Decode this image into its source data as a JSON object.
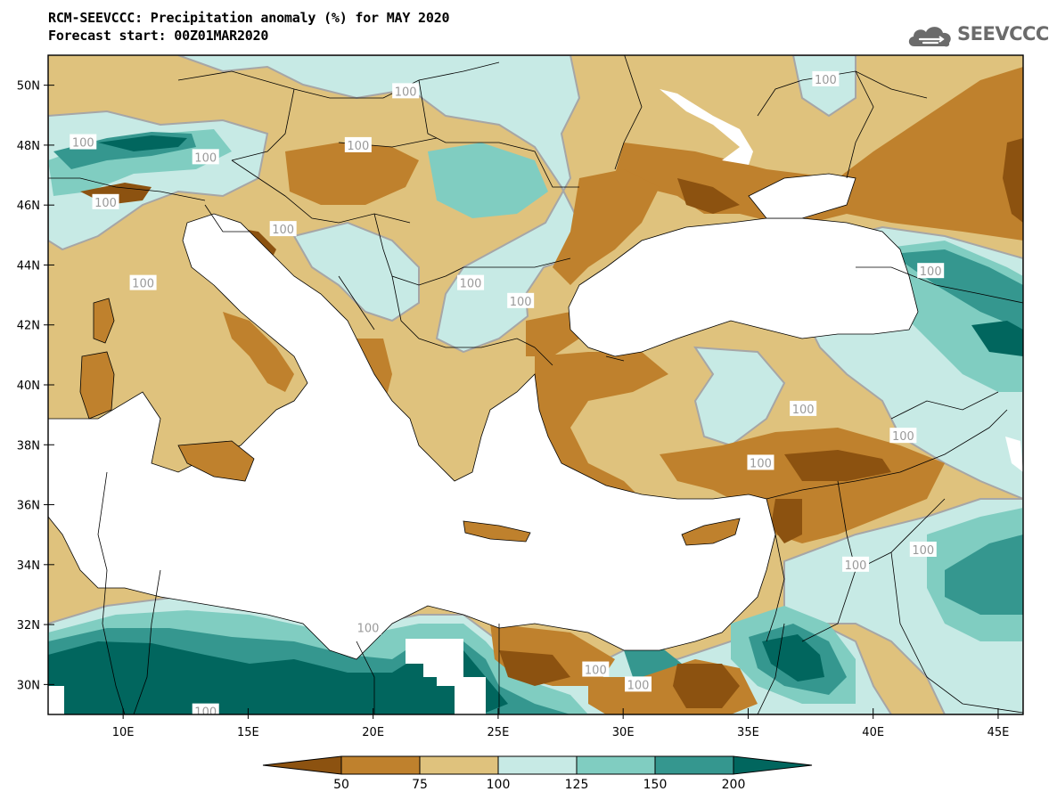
{
  "header": {
    "title_line1": "RCM-SEEVCCC: Precipitation anomaly (%) for MAY 2020",
    "title_line2": "Forecast start: 00Z01MAR2020"
  },
  "logo": {
    "text": "SEEVCCC",
    "icon": "cloud-icon",
    "color": "#6b6b6b"
  },
  "map": {
    "variable": "Precipitation anomaly (%)",
    "month": "MAY 2020",
    "lon_range": [
      7,
      46
    ],
    "lat_range": [
      29,
      51
    ],
    "lat_ticks": [
      "50N",
      "48N",
      "46N",
      "44N",
      "42N",
      "40N",
      "38N",
      "36N",
      "34N",
      "32N",
      "30N"
    ],
    "lat_values": [
      50,
      48,
      46,
      44,
      42,
      40,
      38,
      36,
      34,
      32,
      30
    ],
    "lon_ticks": [
      "10E",
      "15E",
      "20E",
      "25E",
      "30E",
      "35E",
      "40E",
      "45E"
    ],
    "lon_values": [
      10,
      15,
      20,
      25,
      30,
      35,
      40,
      45
    ],
    "contour_labels": [
      {
        "text": "100",
        "lon": 8.4,
        "lat": 48.1
      },
      {
        "text": "100",
        "lon": 13.3,
        "lat": 47.6
      },
      {
        "text": "100",
        "lon": 9.3,
        "lat": 46.1
      },
      {
        "text": "100",
        "lon": 21.3,
        "lat": 49.8
      },
      {
        "text": "100",
        "lon": 19.4,
        "lat": 48.0
      },
      {
        "text": "100",
        "lon": 16.4,
        "lat": 45.2
      },
      {
        "text": "100",
        "lon": 10.8,
        "lat": 43.4
      },
      {
        "text": "100",
        "lon": 23.9,
        "lat": 43.4
      },
      {
        "text": "100",
        "lon": 25.9,
        "lat": 42.8
      },
      {
        "text": "100",
        "lon": 38.1,
        "lat": 50.2
      },
      {
        "text": "100",
        "lon": 42.3,
        "lat": 43.8
      },
      {
        "text": "100",
        "lon": 37.2,
        "lat": 39.2
      },
      {
        "text": "100",
        "lon": 41.2,
        "lat": 38.3
      },
      {
        "text": "100",
        "lon": 35.5,
        "lat": 37.4
      },
      {
        "text": "100",
        "lon": 39.3,
        "lat": 34.0
      },
      {
        "text": "100",
        "lon": 42.0,
        "lat": 34.5
      },
      {
        "text": "100",
        "lon": 28.9,
        "lat": 30.5
      },
      {
        "text": "100",
        "lon": 30.6,
        "lat": 30.0
      },
      {
        "text": "100",
        "lon": 19.8,
        "lat": 31.9
      },
      {
        "text": "100",
        "lon": 13.3,
        "lat": 29.1
      }
    ]
  },
  "colorbar": {
    "levels": [
      "50",
      "75",
      "100",
      "125",
      "150",
      "200"
    ],
    "colors": [
      "#8c5210",
      "#bf812d",
      "#dfc27d",
      "#c7eae5",
      "#80cdc1",
      "#35978f",
      "#01665e"
    ]
  },
  "colors": {
    "dry_strong": "#8c5210",
    "dry": "#bf812d",
    "dry_light": "#dfc27d",
    "wet_light": "#c7eae5",
    "wet": "#80cdc1",
    "wet_strong": "#35978f",
    "wet_very": "#01665e",
    "contour": "#a6a6a6",
    "sea": "#ffffff"
  }
}
